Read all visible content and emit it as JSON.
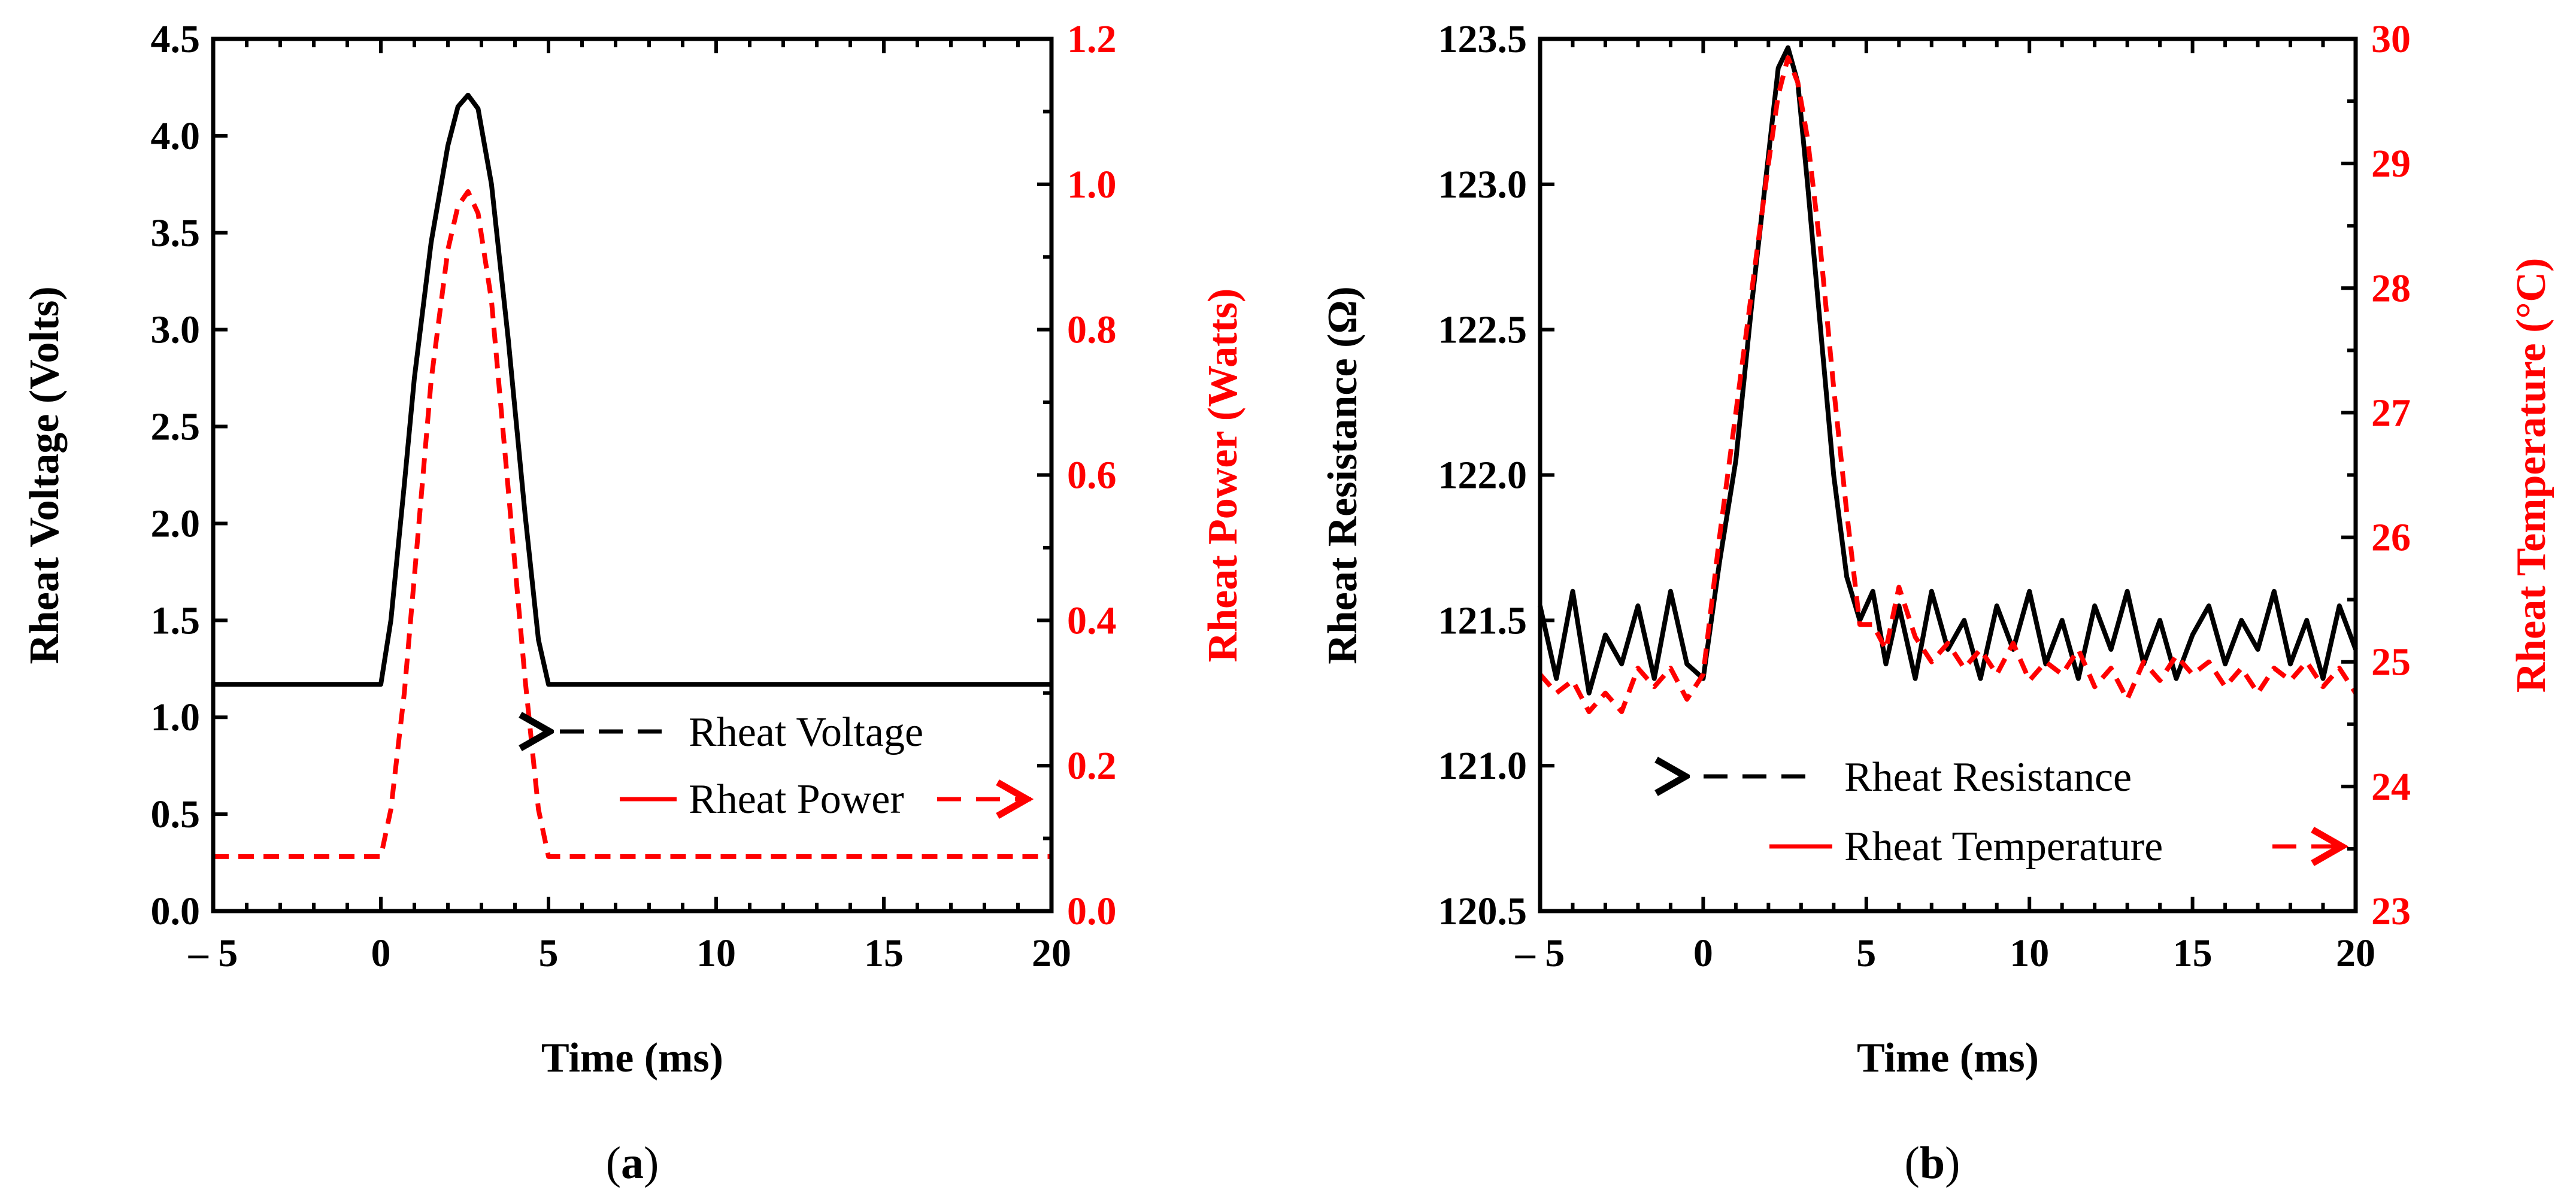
{
  "colors": {
    "primary": "#000000",
    "secondary": "#ff0000"
  },
  "chart_data": [
    {
      "panel": "(a)",
      "panel_prefix": "(",
      "panel_letter": "a",
      "panel_suffix": ")",
      "type": "line",
      "xlabel": "Time (ms)",
      "ylabel": "Rheat Voltage (Volts)",
      "y2label": "Rheat Power (Watts)",
      "xlim": [
        -5,
        20
      ],
      "ylim": [
        0,
        4.5
      ],
      "y2lim": [
        0,
        1.2
      ],
      "x_ticks": [
        "– 5",
        "0",
        "5",
        "10",
        "15",
        "20"
      ],
      "x_tick_values": [
        -5,
        0,
        5,
        10,
        15,
        20
      ],
      "y_ticks": [
        "0.0",
        "0.5",
        "1.0",
        "1.5",
        "2.0",
        "2.5",
        "3.0",
        "3.5",
        "4.0",
        "4.5"
      ],
      "y2_ticks": [
        "0.0",
        "0.2",
        "0.4",
        "0.6",
        "0.8",
        "1.0",
        "1.2"
      ],
      "legend": [
        {
          "label": "Rheat Voltage",
          "axis": "left"
        },
        {
          "label": "Rheat Power",
          "axis": "right"
        }
      ],
      "series": [
        {
          "name": "Rheat Voltage",
          "axis": "left",
          "style": "solid",
          "x": [
            -5,
            0,
            0.3,
            0.7,
            1.0,
            1.5,
            2.0,
            2.3,
            2.6,
            2.9,
            3.3,
            3.8,
            4.3,
            4.7,
            5.0,
            20
          ],
          "y": [
            1.17,
            1.17,
            1.5,
            2.2,
            2.75,
            3.45,
            3.95,
            4.15,
            4.21,
            4.14,
            3.75,
            2.95,
            2.05,
            1.4,
            1.17,
            1.17
          ]
        },
        {
          "name": "Rheat Power",
          "axis": "right",
          "style": "dashed",
          "x": [
            -5,
            0,
            0.3,
            0.7,
            1.0,
            1.5,
            2.0,
            2.3,
            2.6,
            2.9,
            3.3,
            3.8,
            4.3,
            4.7,
            5.0,
            20
          ],
          "y": [
            0.075,
            0.075,
            0.14,
            0.3,
            0.46,
            0.73,
            0.91,
            0.97,
            0.99,
            0.96,
            0.84,
            0.58,
            0.32,
            0.14,
            0.075,
            0.075
          ]
        }
      ]
    },
    {
      "panel": "(b)",
      "panel_prefix": "(",
      "panel_letter": "b",
      "panel_suffix": ")",
      "type": "line",
      "xlabel": "Time (ms)",
      "ylabel": "Rheat Resistance (Ω)",
      "y2label": "Rheat Temperature (°C)",
      "xlim": [
        -5,
        20
      ],
      "ylim": [
        120.5,
        123.5
      ],
      "y2lim": [
        23,
        30
      ],
      "x_ticks": [
        "– 5",
        "0",
        "5",
        "10",
        "15",
        "20"
      ],
      "x_tick_values": [
        -5,
        0,
        5,
        10,
        15,
        20
      ],
      "y_ticks": [
        "120.5",
        "121.0",
        "121.5",
        "122.0",
        "122.5",
        "123.0",
        "123.5"
      ],
      "y2_ticks": [
        "23",
        "24",
        "25",
        "26",
        "27",
        "28",
        "29",
        "30"
      ],
      "legend": [
        {
          "label": "Rheat Resistance",
          "axis": "left"
        },
        {
          "label": "Rheat Temperature",
          "axis": "right"
        }
      ],
      "series": [
        {
          "name": "Rheat Resistance",
          "axis": "left",
          "style": "solid",
          "x": [
            -5,
            -4.5,
            -4,
            -3.5,
            -3,
            -2.5,
            -2,
            -1.5,
            -1,
            -0.5,
            0,
            0.5,
            1,
            1.5,
            2,
            2.3,
            2.6,
            2.9,
            3.2,
            3.6,
            4,
            4.4,
            4.8,
            5.2,
            5.6,
            6,
            6.5,
            7,
            7.5,
            8,
            8.5,
            9,
            9.5,
            10,
            10.5,
            11,
            11.5,
            12,
            12.5,
            13,
            13.5,
            14,
            14.5,
            15,
            15.5,
            16,
            16.5,
            17,
            17.5,
            18,
            18.5,
            19,
            19.5,
            20
          ],
          "y": [
            121.55,
            121.3,
            121.6,
            121.25,
            121.45,
            121.35,
            121.55,
            121.3,
            121.6,
            121.35,
            121.3,
            121.7,
            122.05,
            122.6,
            123.1,
            123.4,
            123.47,
            123.35,
            123.0,
            122.5,
            122.0,
            121.65,
            121.5,
            121.6,
            121.35,
            121.55,
            121.3,
            121.6,
            121.4,
            121.5,
            121.3,
            121.55,
            121.4,
            121.6,
            121.35,
            121.5,
            121.3,
            121.55,
            121.4,
            121.6,
            121.35,
            121.5,
            121.3,
            121.45,
            121.55,
            121.35,
            121.5,
            121.4,
            121.6,
            121.35,
            121.5,
            121.3,
            121.55,
            121.4
          ]
        },
        {
          "name": "Rheat Temperature",
          "axis": "right",
          "style": "dashed",
          "x": [
            -5,
            -4.5,
            -4,
            -3.5,
            -3,
            -2.5,
            -2,
            -1.5,
            -1,
            -0.5,
            0,
            0.5,
            1,
            1.5,
            2,
            2.3,
            2.6,
            2.9,
            3.2,
            3.6,
            4,
            4.4,
            4.8,
            5.2,
            5.6,
            6,
            6.5,
            7,
            7.5,
            8,
            8.5,
            9,
            9.5,
            10,
            10.5,
            11,
            11.5,
            12,
            12.5,
            13,
            13.5,
            14,
            14.5,
            15,
            15.5,
            16,
            16.5,
            17,
            17.5,
            18,
            18.5,
            19,
            19.5,
            20
          ],
          "y": [
            24.9,
            24.75,
            24.85,
            24.6,
            24.75,
            24.6,
            24.95,
            24.8,
            24.95,
            24.7,
            24.9,
            26.0,
            27.0,
            28.0,
            29.0,
            29.55,
            29.85,
            29.65,
            29.2,
            28.3,
            27.2,
            26.2,
            25.3,
            25.3,
            25.1,
            25.6,
            25.2,
            25.0,
            25.15,
            24.95,
            25.1,
            24.9,
            25.15,
            24.85,
            25.0,
            24.9,
            25.1,
            24.8,
            24.95,
            24.7,
            25.0,
            24.85,
            25.05,
            24.9,
            25.0,
            24.8,
            24.95,
            24.75,
            24.95,
            24.85,
            25.0,
            24.8,
            24.95,
            24.75
          ]
        }
      ]
    }
  ]
}
